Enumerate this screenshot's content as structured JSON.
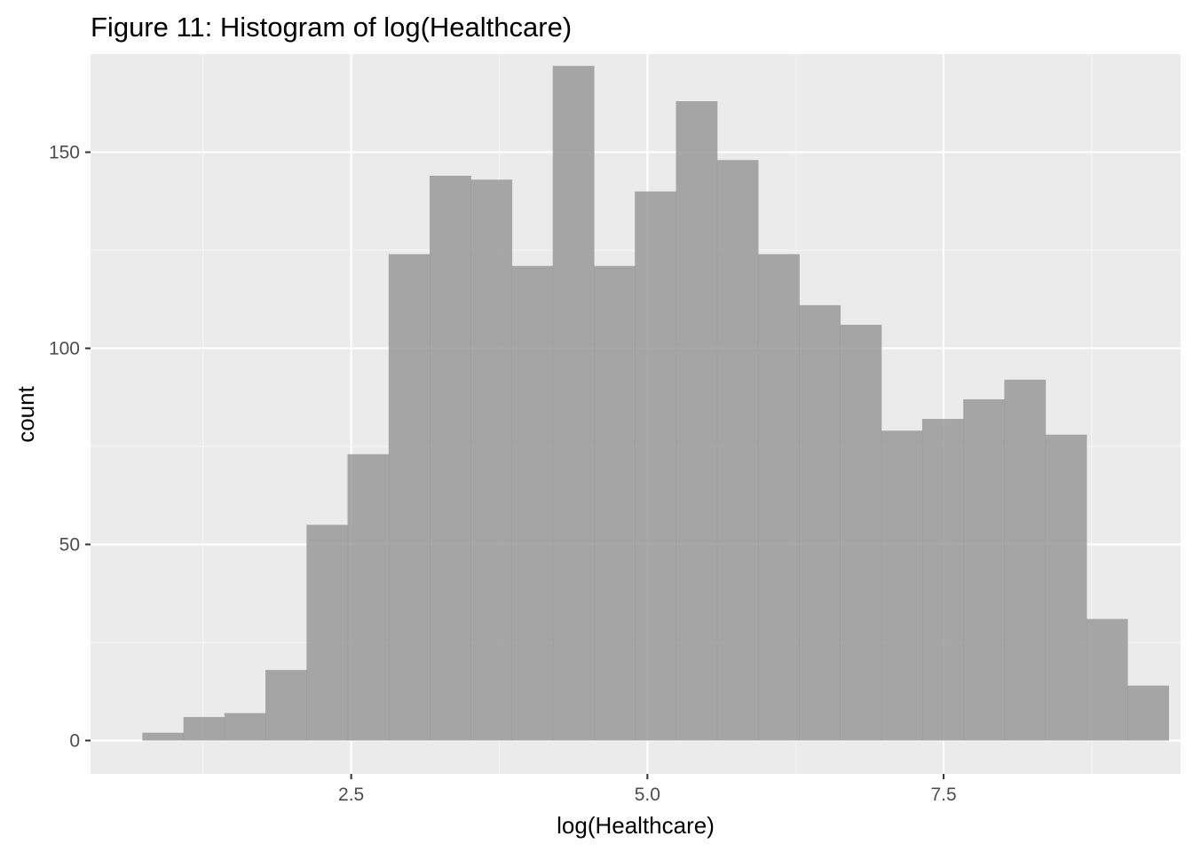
{
  "chart_data": {
    "type": "histogram",
    "title": "Figure 11: Histogram of log(Healthcare)",
    "xlabel": "log(Healthcare)",
    "ylabel": "count",
    "xlim": [
      0.3,
      9.5
    ],
    "ylim": [
      -8.5,
      175
    ],
    "x_ticks": [
      2.5,
      5.0,
      7.5
    ],
    "x_tick_labels": [
      "2.5",
      "5.0",
      "7.5"
    ],
    "y_ticks": [
      0,
      50,
      100,
      150
    ],
    "y_tick_labels": [
      "0",
      "50",
      "100",
      "150"
    ],
    "grid": true,
    "bin_width": 0.3464,
    "bins": [
      {
        "x_start": 0.737,
        "x_end": 1.084,
        "count": 2
      },
      {
        "x_start": 1.084,
        "x_end": 1.43,
        "count": 6
      },
      {
        "x_start": 1.43,
        "x_end": 1.776,
        "count": 7
      },
      {
        "x_start": 1.776,
        "x_end": 2.123,
        "count": 18
      },
      {
        "x_start": 2.123,
        "x_end": 2.469,
        "count": 55
      },
      {
        "x_start": 2.469,
        "x_end": 2.816,
        "count": 73
      },
      {
        "x_start": 2.816,
        "x_end": 3.162,
        "count": 124
      },
      {
        "x_start": 3.162,
        "x_end": 3.508,
        "count": 144
      },
      {
        "x_start": 3.508,
        "x_end": 3.855,
        "count": 143
      },
      {
        "x_start": 3.855,
        "x_end": 4.201,
        "count": 121
      },
      {
        "x_start": 4.201,
        "x_end": 4.548,
        "count": 172
      },
      {
        "x_start": 4.548,
        "x_end": 4.894,
        "count": 121
      },
      {
        "x_start": 4.894,
        "x_end": 5.241,
        "count": 140
      },
      {
        "x_start": 5.241,
        "x_end": 5.587,
        "count": 163
      },
      {
        "x_start": 5.587,
        "x_end": 5.933,
        "count": 148
      },
      {
        "x_start": 5.933,
        "x_end": 6.28,
        "count": 124
      },
      {
        "x_start": 6.28,
        "x_end": 6.626,
        "count": 111
      },
      {
        "x_start": 6.626,
        "x_end": 6.973,
        "count": 106
      },
      {
        "x_start": 6.973,
        "x_end": 7.319,
        "count": 79
      },
      {
        "x_start": 7.319,
        "x_end": 7.666,
        "count": 82
      },
      {
        "x_start": 7.666,
        "x_end": 8.012,
        "count": 87
      },
      {
        "x_start": 8.012,
        "x_end": 8.358,
        "count": 92
      },
      {
        "x_start": 8.358,
        "x_end": 8.705,
        "count": 78
      },
      {
        "x_start": 8.705,
        "x_end": 9.051,
        "count": 31
      },
      {
        "x_start": 9.051,
        "x_end": 9.398,
        "count": 14
      }
    ],
    "colors": {
      "panel_background": "#ebebeb",
      "grid_major": "#ffffff",
      "grid_minor": "#f5f5f5",
      "bar_fill": "#999999",
      "bar_opacity": 0.85
    }
  }
}
